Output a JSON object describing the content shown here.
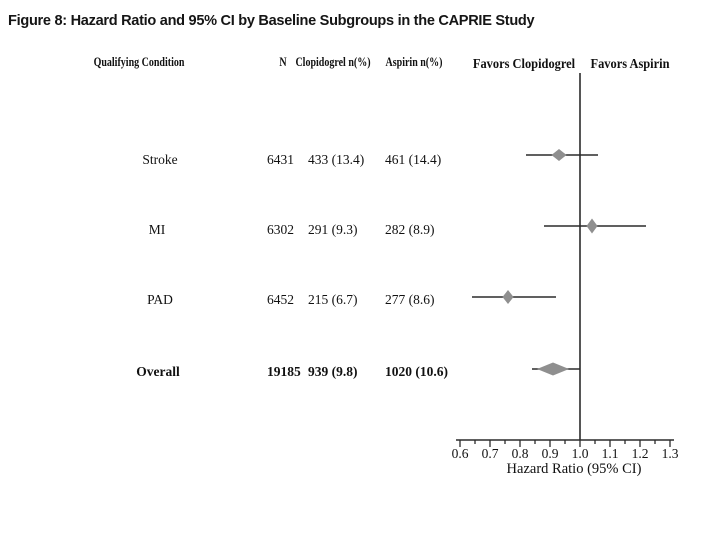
{
  "title": "Figure 8: Hazard Ratio and 95% CI by Baseline Subgroups in the CAPRIE Study",
  "table": {
    "headers": {
      "qualifying_condition": "Qualifying Condition",
      "n": "N",
      "clopidogrel": "Clopidogrel n(%)",
      "aspirin": "Aspirin n(%)"
    },
    "rows": [
      {
        "label": "Stroke",
        "n": "6431",
        "clopidogrel": "433 (13.4)",
        "aspirin": "461 (14.4)"
      },
      {
        "label": "MI",
        "n": "6302",
        "clopidogrel": "291 (9.3)",
        "aspirin": "282 (8.9)"
      },
      {
        "label": "PAD",
        "n": "6452",
        "clopidogrel": "215 (6.7)",
        "aspirin": "277 (8.6)"
      },
      {
        "label": "Overall",
        "n": "19185",
        "clopidogrel": "939 (9.8)",
        "aspirin": "1020 (10.6)"
      }
    ]
  },
  "chart_data": {
    "type": "forest",
    "xlabel": "Hazard Ratio (95% CI)",
    "xlim": [
      0.6,
      1.3
    ],
    "x_ticks": [
      0.6,
      0.7,
      0.8,
      0.9,
      1.0,
      1.1,
      1.2,
      1.3
    ],
    "x_tick_labels": [
      "0.6",
      "0.7",
      "0.8",
      "0.9",
      "1.0",
      "1.1",
      "1.2",
      "1.3"
    ],
    "minor_tick_step": 0.05,
    "reference_line": 1.0,
    "favors_left": "Favors Clopidogrel",
    "favors_right": "Favors Aspirin",
    "legend_position": "none",
    "grid": false,
    "marker_color": "#8f8f8f",
    "line_color": "#2b2b2b",
    "series": [
      {
        "name": "Stroke",
        "hr": 0.93,
        "ci_low": 0.82,
        "ci_high": 1.06,
        "marker": {
          "w": 15,
          "h": 12
        }
      },
      {
        "name": "MI",
        "hr": 1.04,
        "ci_low": 0.88,
        "ci_high": 1.22,
        "marker": {
          "w": 11,
          "h": 15
        }
      },
      {
        "name": "PAD",
        "hr": 0.76,
        "ci_low": 0.64,
        "ci_high": 0.92,
        "marker": {
          "w": 11,
          "h": 14
        }
      },
      {
        "name": "Overall",
        "hr": 0.91,
        "ci_low": 0.84,
        "ci_high": 1.0,
        "marker": {
          "w": 32,
          "h": 13
        }
      }
    ]
  }
}
